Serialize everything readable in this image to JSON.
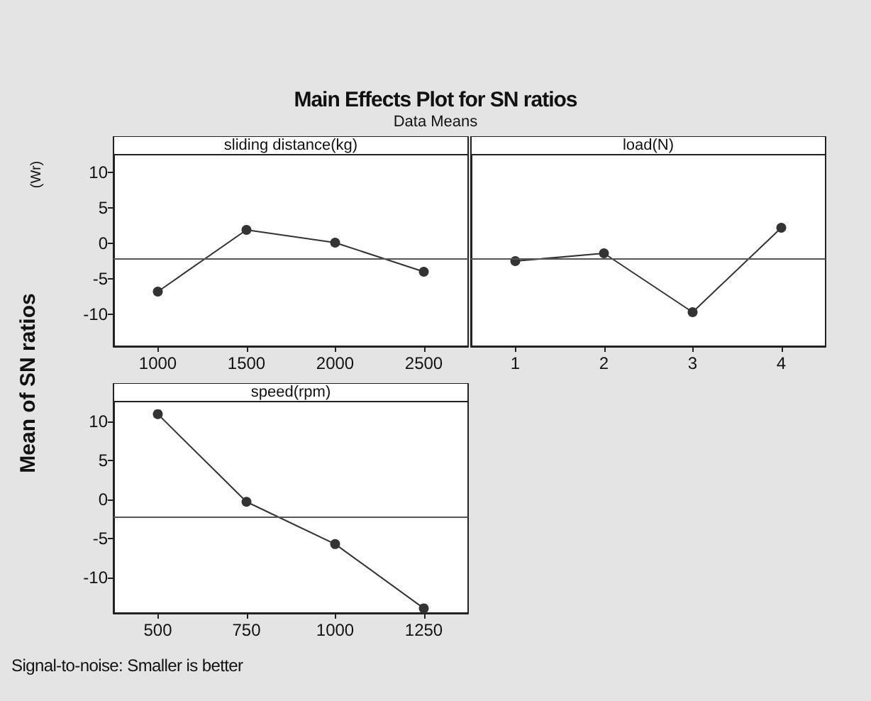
{
  "chart_data": [
    {
      "type": "line",
      "title": "Main Effects Plot for SN ratios",
      "subtitle": "Data Means",
      "ylabel": "Mean of SN ratios",
      "xlabel": "sliding distance(kg)",
      "annotations": [
        "(Wr)",
        "Signal-to-noise: Smaller is better"
      ],
      "categories": [
        "1000",
        "1500",
        "2000",
        "2500"
      ],
      "values": [
        -6.8,
        1.9,
        0.1,
        -4.0
      ],
      "color": "#333333",
      "marker": "circle",
      "ylim": [
        -14.5,
        12.5
      ],
      "yticks": [
        -10,
        -5,
        0,
        5,
        10
      ],
      "ref_lines": [
        {
          "axis": "y",
          "value": -2.2,
          "color": "#555555"
        }
      ],
      "grid": false
    },
    {
      "type": "line",
      "xlabel": "load(N)",
      "categories": [
        "1",
        "2",
        "3",
        "4"
      ],
      "values": [
        -2.5,
        -1.4,
        -9.7,
        2.2
      ],
      "color": "#333333",
      "marker": "circle",
      "ylim": [
        -14.5,
        12.5
      ],
      "yticks": [
        -10,
        -5,
        0,
        5,
        10
      ],
      "tick_labels": "x",
      "ref_lines": [
        {
          "axis": "y",
          "value": -2.2,
          "color": "#555555"
        }
      ],
      "grid": false
    },
    {
      "type": "line",
      "xlabel": "speed(rpm)",
      "categories": [
        "500",
        "750",
        "1000",
        "1250"
      ],
      "values": [
        10.9,
        -0.3,
        -5.7,
        -13.9
      ],
      "color": "#333333",
      "marker": "circle",
      "ylim": [
        -14.5,
        12.5
      ],
      "yticks": [
        -10,
        -5,
        0,
        5,
        10
      ],
      "ref_lines": [
        {
          "axis": "y",
          "value": -2.2,
          "color": "#555555"
        }
      ],
      "grid": false
    }
  ]
}
